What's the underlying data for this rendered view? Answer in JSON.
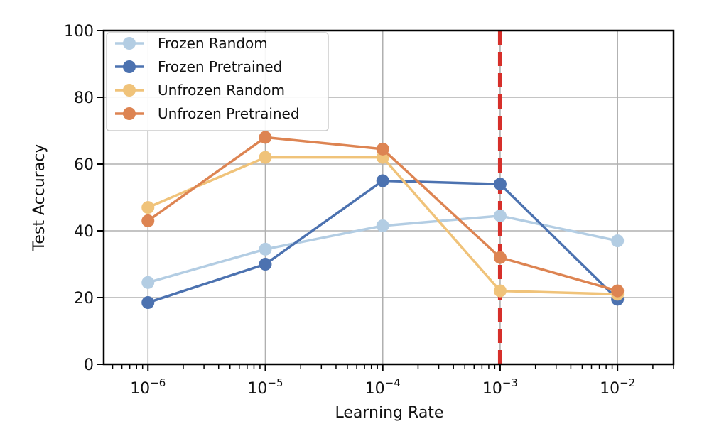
{
  "chart_data": {
    "type": "line",
    "xlabel": "Learning Rate",
    "ylabel": "Test Accuracy",
    "x_scale": "log",
    "x": [
      1e-06,
      1e-05,
      0.0001,
      0.001,
      0.01
    ],
    "x_ticks": [
      {
        "value": 1e-06,
        "base": "10",
        "exp": "−6"
      },
      {
        "value": 1e-05,
        "base": "10",
        "exp": "−5"
      },
      {
        "value": 0.0001,
        "base": "10",
        "exp": "−4"
      },
      {
        "value": 0.001,
        "base": "10",
        "exp": "−3"
      },
      {
        "value": 0.01,
        "base": "10",
        "exp": "−2"
      }
    ],
    "xlim": [
      4.2e-07,
      0.03
    ],
    "ylim": [
      0,
      100
    ],
    "y_ticks": [
      0,
      20,
      40,
      60,
      80,
      100
    ],
    "y_tick_labels": [
      "0",
      "20",
      "40",
      "60",
      "80",
      "100"
    ],
    "grid": true,
    "legend_position": "top-left",
    "reference_line": {
      "x": 0.001,
      "color": "#d62f2a",
      "style": "dashed"
    },
    "series": [
      {
        "name": "Frozen Random",
        "color": "#b3cde3",
        "values": [
          24.5,
          34.5,
          41.5,
          44.5,
          37.0
        ]
      },
      {
        "name": "Frozen Pretrained",
        "color": "#4c72b0",
        "values": [
          18.5,
          30.0,
          55.0,
          54.0,
          19.5
        ]
      },
      {
        "name": "Unfrozen Random",
        "color": "#f0c37a",
        "values": [
          47.0,
          62.0,
          62.0,
          22.0,
          21.0
        ]
      },
      {
        "name": "Unfrozen Pretrained",
        "color": "#dd8452",
        "values": [
          43.0,
          68.0,
          64.5,
          32.0,
          22.0
        ]
      }
    ]
  }
}
